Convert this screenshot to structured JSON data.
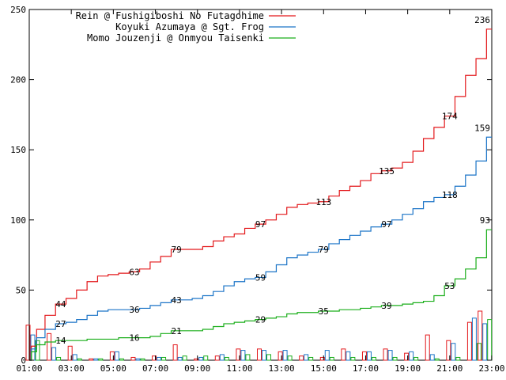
{
  "chart_data": {
    "type": "line",
    "title": "",
    "xlabel": "",
    "ylabel": "",
    "ylim": [
      0,
      250
    ],
    "yticks": [
      0,
      50,
      100,
      150,
      200,
      250
    ],
    "xlim": [
      1,
      23
    ],
    "xticks": [
      {
        "x": 1,
        "label": "01:00"
      },
      {
        "x": 3,
        "label": "03:00"
      },
      {
        "x": 5,
        "label": "05:00"
      },
      {
        "x": 7,
        "label": "07:00"
      },
      {
        "x": 9,
        "label": "09:00"
      },
      {
        "x": 11,
        "label": "11:00"
      },
      {
        "x": 13,
        "label": "13:00"
      },
      {
        "x": 15,
        "label": "15:00"
      },
      {
        "x": 17,
        "label": "17:00"
      },
      {
        "x": 19,
        "label": "19:00"
      },
      {
        "x": 21,
        "label": "21:00"
      },
      {
        "x": 23,
        "label": "23:00"
      }
    ],
    "legend_position": "top-left",
    "series": [
      {
        "name": "Rein @ Fushigiboshi No Futagohime",
        "color": "#e3181b",
        "x": [
          1,
          1.2,
          1.5,
          2,
          2.5,
          3,
          3.5,
          4,
          4.5,
          5,
          5.5,
          6,
          6.5,
          7,
          7.5,
          8,
          8.5,
          9,
          9.5,
          10,
          10.5,
          11,
          11.5,
          12,
          12.5,
          13,
          13.5,
          14,
          14.5,
          15,
          15.5,
          16,
          16.5,
          17,
          17.5,
          18,
          18.5,
          19,
          19.5,
          20,
          20.5,
          21,
          21.5,
          22,
          22.5,
          23
        ],
        "values": [
          0,
          10,
          22,
          32,
          40,
          44,
          50,
          56,
          60,
          61,
          62,
          63,
          65,
          70,
          74,
          79,
          79,
          79,
          81,
          85,
          88,
          90,
          94,
          97,
          100,
          104,
          109,
          111,
          112,
          113,
          117,
          121,
          124,
          128,
          133,
          135,
          137,
          141,
          149,
          158,
          166,
          174,
          188,
          203,
          215,
          236
        ],
        "labels": [
          {
            "x": 2.5,
            "value": "44"
          },
          {
            "x": 6,
            "value": "63"
          },
          {
            "x": 8,
            "value": "79"
          },
          {
            "x": 12,
            "value": "97"
          },
          {
            "x": 15,
            "value": "113"
          },
          {
            "x": 18,
            "value": "135"
          },
          {
            "x": 21,
            "value": "174"
          },
          {
            "x": 23,
            "value": "236"
          }
        ]
      },
      {
        "name": "Koyuki Azumaya @ Sgt. Frog",
        "color": "#1b74c7",
        "x": [
          1,
          1.2,
          1.5,
          2,
          2.5,
          3,
          3.5,
          4,
          4.5,
          5,
          5.5,
          6,
          6.5,
          7,
          7.5,
          8,
          8.5,
          9,
          9.5,
          10,
          10.5,
          11,
          11.5,
          12,
          12.5,
          13,
          13.5,
          14,
          14.5,
          15,
          15.5,
          16,
          16.5,
          17,
          17.5,
          18,
          18.5,
          19,
          19.5,
          20,
          20.5,
          21,
          21.5,
          22,
          22.5,
          23
        ],
        "values": [
          0,
          8,
          16,
          22,
          26,
          27,
          29,
          32,
          35,
          36,
          36,
          36,
          37,
          39,
          41,
          43,
          43,
          44,
          46,
          49,
          53,
          56,
          58,
          59,
          63,
          68,
          73,
          75,
          77,
          79,
          83,
          86,
          89,
          92,
          95,
          97,
          100,
          104,
          108,
          113,
          116,
          118,
          124,
          132,
          142,
          159
        ],
        "labels": [
          {
            "x": 2.5,
            "value": "27"
          },
          {
            "x": 6,
            "value": "36"
          },
          {
            "x": 8,
            "value": "43"
          },
          {
            "x": 12,
            "value": "59"
          },
          {
            "x": 15,
            "value": "79"
          },
          {
            "x": 18,
            "value": "97"
          },
          {
            "x": 21,
            "value": "118"
          },
          {
            "x": 23,
            "value": "159"
          }
        ]
      },
      {
        "name": "Momo Jouzenji @ Onmyou Taisenki",
        "color": "#1aae1a",
        "x": [
          1,
          1.2,
          1.5,
          2,
          2.5,
          3,
          3.5,
          4,
          4.5,
          5,
          5.5,
          6,
          6.5,
          7,
          7.5,
          8,
          8.5,
          9,
          9.5,
          10,
          10.5,
          11,
          11.5,
          12,
          12.5,
          13,
          13.5,
          14,
          14.5,
          15,
          15.5,
          16,
          16.5,
          17,
          17.5,
          18,
          18.5,
          19,
          19.5,
          20,
          20.5,
          21,
          21.5,
          22,
          22.5,
          23
        ],
        "values": [
          0,
          6,
          11,
          13,
          14,
          14,
          14,
          15,
          15,
          15,
          16,
          16,
          16,
          17,
          19,
          21,
          21,
          21,
          22,
          24,
          26,
          27,
          28,
          29,
          30,
          31,
          33,
          34,
          34,
          35,
          35,
          36,
          36,
          37,
          38,
          39,
          39,
          40,
          41,
          42,
          46,
          53,
          58,
          65,
          73,
          93
        ],
        "labels": [
          {
            "x": 2.5,
            "value": "14"
          },
          {
            "x": 6,
            "value": "16"
          },
          {
            "x": 8,
            "value": "21"
          },
          {
            "x": 12,
            "value": "29"
          },
          {
            "x": 15,
            "value": "35"
          },
          {
            "x": 18,
            "value": "39"
          },
          {
            "x": 21,
            "value": "53"
          },
          {
            "x": 23,
            "value": "93"
          }
        ]
      }
    ],
    "bar_series": [
      {
        "name": "Rein @ Fushigiboshi No Futagohime",
        "color": "#e3181b",
        "x": [
          1,
          2,
          3,
          4,
          5,
          6,
          7,
          8,
          9,
          10,
          11,
          12,
          13,
          14,
          15,
          16,
          17,
          18,
          19,
          20,
          21,
          22
        ],
        "values": [
          25,
          19,
          10,
          1,
          6,
          2,
          3,
          11,
          1,
          3,
          8,
          8,
          6,
          3,
          2,
          8,
          6,
          8,
          5,
          18,
          14,
          27
        ]
      },
      {
        "name": "Koyuki Azumaya @ Sgt. Frog",
        "color": "#1b74c7",
        "x": [
          1,
          2,
          3,
          4,
          5,
          6,
          7,
          8,
          9,
          10,
          11,
          12,
          13,
          14,
          15,
          16,
          17,
          18,
          19,
          20,
          21,
          22
        ],
        "values": [
          18,
          9,
          4,
          1,
          6,
          1,
          2,
          2,
          2,
          4,
          7,
          7,
          7,
          4,
          7,
          6,
          6,
          7,
          6,
          4,
          12,
          30
        ]
      },
      {
        "name": "Momo Jouzenji @ Onmyou Taisenki",
        "color": "#1aae1a",
        "x": [
          1,
          2,
          3,
          4,
          5,
          6,
          7,
          8,
          9,
          10,
          11,
          12,
          13,
          14,
          15,
          16,
          17,
          18,
          19,
          20,
          21,
          22
        ],
        "values": [
          14,
          2,
          1,
          1,
          1,
          1,
          2,
          3,
          3,
          2,
          4,
          4,
          3,
          2,
          2,
          2,
          2,
          2,
          2,
          1,
          2,
          12
        ]
      }
    ],
    "bar_series_extra": [
      {
        "name": "Rein @ Fushigiboshi No Futagohime",
        "color": "#e3181b",
        "x": [
          22.5
        ],
        "values": [
          35
        ]
      },
      {
        "name": "Koyuki Azumaya @ Sgt. Frog",
        "color": "#1b74c7",
        "x": [
          22.5
        ],
        "values": [
          26
        ]
      },
      {
        "name": "Momo Jouzenji @ Onmyou Taisenki",
        "color": "#1aae1a",
        "x": [
          22.5
        ],
        "values": [
          29
        ]
      }
    ]
  }
}
